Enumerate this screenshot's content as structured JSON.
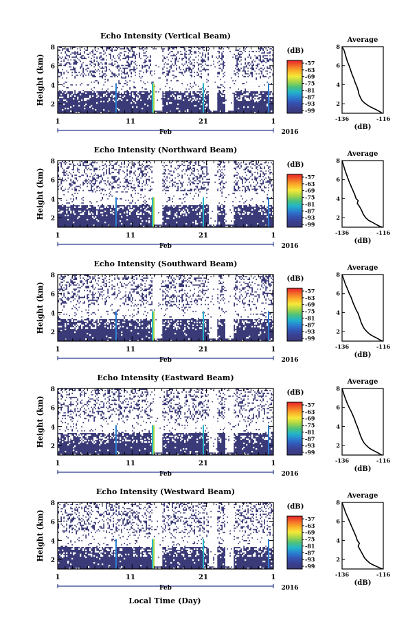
{
  "chart_data": {
    "type": "heatmap",
    "xlabel": "Local Time (Day)",
    "x_ticks": [
      "1",
      "11",
      "21",
      "1"
    ],
    "month_label": "Feb",
    "year_label": "2016",
    "ylabel": "Height (km)",
    "y_ticks": [
      "2",
      "4",
      "6",
      "8"
    ],
    "ylim": [
      1,
      8
    ],
    "colorbar": {
      "label": "(dB)",
      "ticks": [
        "-57",
        "-63",
        "-69",
        "-75",
        "-81",
        "-87",
        "-93",
        "-99"
      ],
      "colors": [
        "#e8202a",
        "#f26c28",
        "#fbb02a",
        "#f5e93a",
        "#a9d646",
        "#4ec27a",
        "#23b5c9",
        "#2a7fd1",
        "#3354b4",
        "#3a3f8f",
        "#3a3a78"
      ]
    },
    "average_profile": {
      "title": "Average",
      "xlabel": "(dB)",
      "x_ticks": [
        "-136",
        "-116"
      ],
      "xlim": [
        -136,
        -116
      ],
      "y_ticks": [
        "2",
        "4",
        "6",
        "8"
      ]
    },
    "panels": [
      {
        "title": "Echo Intensity (Vertical Beam)",
        "profile": [
          [
            -136,
            8
          ],
          [
            -135,
            7.6
          ],
          [
            -134.2,
            7.0
          ],
          [
            -133.5,
            6.5
          ],
          [
            -132.6,
            6.0
          ],
          [
            -131.8,
            5.5
          ],
          [
            -131,
            5.0
          ],
          [
            -130.2,
            4.6
          ],
          [
            -129.6,
            4.2
          ],
          [
            -128.8,
            3.8
          ],
          [
            -128.2,
            3.4
          ],
          [
            -127.8,
            3.0
          ],
          [
            -127,
            2.6
          ],
          [
            -126.2,
            2.3
          ],
          [
            -125.2,
            2.1
          ],
          [
            -124,
            1.9
          ],
          [
            -122.5,
            1.7
          ],
          [
            -120.6,
            1.5
          ],
          [
            -118.8,
            1.3
          ],
          [
            -117.2,
            1.1
          ],
          [
            -116.6,
            1.0
          ]
        ]
      },
      {
        "title": "Echo Intensity (Northward Beam)",
        "profile": [
          [
            -136,
            8
          ],
          [
            -135.3,
            7.5
          ],
          [
            -134.6,
            7.0
          ],
          [
            -133.6,
            6.4
          ],
          [
            -132.6,
            5.8
          ],
          [
            -131.6,
            5.3
          ],
          [
            -130.6,
            4.8
          ],
          [
            -129.8,
            4.4
          ],
          [
            -129.2,
            4.0
          ],
          [
            -128.2,
            3.8
          ],
          [
            -128.6,
            3.5
          ],
          [
            -127.6,
            3.2
          ],
          [
            -126.6,
            2.8
          ],
          [
            -125.8,
            2.4
          ],
          [
            -124.6,
            2.0
          ],
          [
            -123,
            1.7
          ],
          [
            -121.2,
            1.5
          ],
          [
            -119.6,
            1.3
          ],
          [
            -117.8,
            1.1
          ],
          [
            -116.6,
            1.0
          ]
        ]
      },
      {
        "title": "Echo Intensity (Southward Beam)",
        "profile": [
          [
            -136,
            8
          ],
          [
            -135.2,
            7.5
          ],
          [
            -134.4,
            7.0
          ],
          [
            -133.4,
            6.5
          ],
          [
            -132.5,
            6.0
          ],
          [
            -131.6,
            5.6
          ],
          [
            -130.8,
            5.1
          ],
          [
            -130,
            4.7
          ],
          [
            -129.2,
            4.3
          ],
          [
            -128.2,
            3.9
          ],
          [
            -127.4,
            3.4
          ],
          [
            -126.8,
            3.0
          ],
          [
            -126,
            2.6
          ],
          [
            -125.2,
            2.3
          ],
          [
            -124,
            2.0
          ],
          [
            -122.4,
            1.7
          ],
          [
            -120.8,
            1.5
          ],
          [
            -119,
            1.3
          ],
          [
            -117.4,
            1.1
          ],
          [
            -116.4,
            1.0
          ]
        ]
      },
      {
        "title": "Echo Intensity (Eastward Beam)",
        "profile": [
          [
            -136,
            8
          ],
          [
            -135.3,
            7.5
          ],
          [
            -134.5,
            7.0
          ],
          [
            -133.6,
            6.5
          ],
          [
            -132.6,
            6.0
          ],
          [
            -131.6,
            5.6
          ],
          [
            -130.8,
            5.2
          ],
          [
            -130,
            4.8
          ],
          [
            -129.4,
            4.4
          ],
          [
            -128.6,
            4.0
          ],
          [
            -127.8,
            3.5
          ],
          [
            -127,
            3.0
          ],
          [
            -126.2,
            2.6
          ],
          [
            -125.4,
            2.3
          ],
          [
            -124.2,
            2.0
          ],
          [
            -122.6,
            1.7
          ],
          [
            -121,
            1.5
          ],
          [
            -119.2,
            1.3
          ],
          [
            -117.6,
            1.1
          ],
          [
            -116.6,
            1.0
          ]
        ]
      },
      {
        "title": "Echo Intensity (Westward Beam)",
        "profile": [
          [
            -136,
            8
          ],
          [
            -135.2,
            7.5
          ],
          [
            -134.4,
            7.0
          ],
          [
            -133.2,
            6.4
          ],
          [
            -132,
            5.8
          ],
          [
            -131,
            5.3
          ],
          [
            -130,
            4.8
          ],
          [
            -129.2,
            4.4
          ],
          [
            -128.6,
            4.0
          ],
          [
            -127.6,
            3.7
          ],
          [
            -128.2,
            3.4
          ],
          [
            -127.2,
            3.0
          ],
          [
            -126.2,
            2.6
          ],
          [
            -125.2,
            2.2
          ],
          [
            -124,
            1.9
          ],
          [
            -122.4,
            1.6
          ],
          [
            -120.6,
            1.4
          ],
          [
            -118.6,
            1.2
          ],
          [
            -117,
            1.05
          ],
          [
            -116.4,
            1.0
          ]
        ]
      }
    ]
  }
}
